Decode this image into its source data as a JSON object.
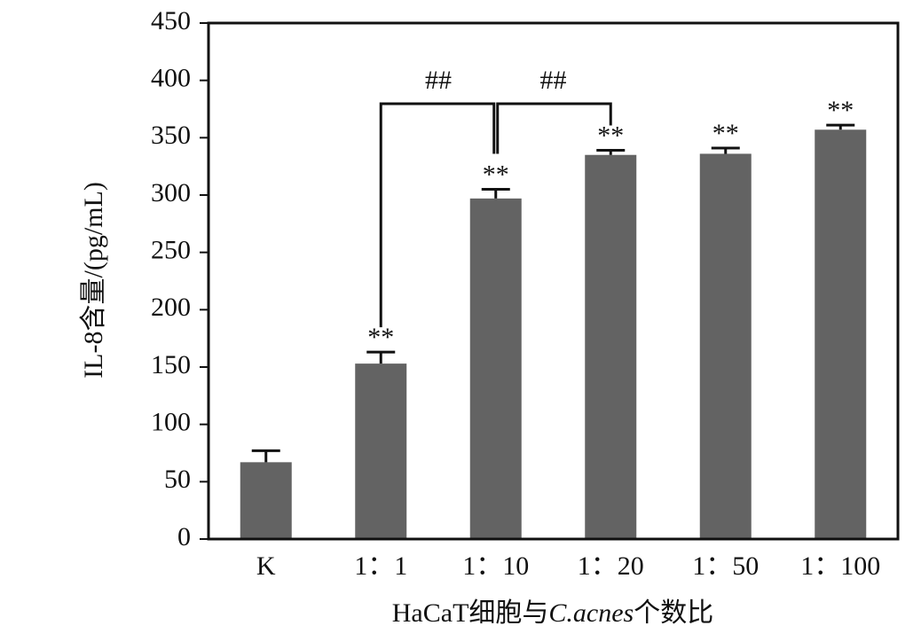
{
  "chart_data": {
    "type": "bar",
    "ylabel": "IL-8含量/(pg/mL)",
    "xlabel_parts": [
      "HaCaT细胞与",
      "C.acnes",
      "个数比"
    ],
    "categories": [
      "K",
      "1：1",
      "1：10",
      "1：20",
      "1：50",
      "1：100"
    ],
    "values": [
      67,
      153,
      297,
      335,
      336,
      357
    ],
    "errors": [
      10,
      10,
      8,
      4,
      5,
      4
    ],
    "markers": [
      null,
      "**",
      "**",
      "**",
      "**",
      "**"
    ],
    "comparisons": [
      {
        "from": 1,
        "to": 2,
        "label": "##"
      },
      {
        "from": 2,
        "to": 3,
        "label": "##"
      }
    ],
    "color": "#636363",
    "ylim": [
      0,
      450
    ],
    "yticks": [
      0,
      50,
      100,
      150,
      200,
      250,
      300,
      350,
      400,
      450
    ]
  }
}
